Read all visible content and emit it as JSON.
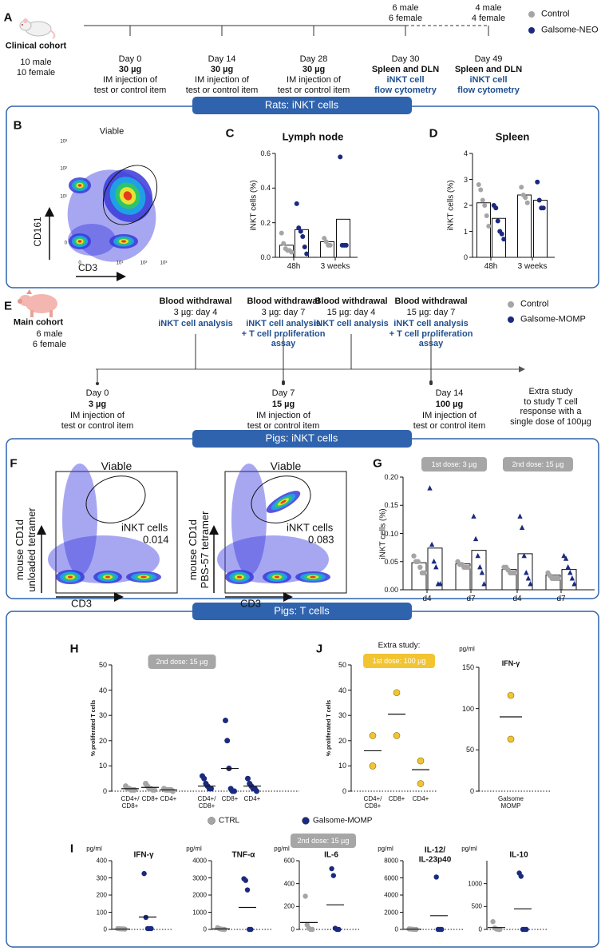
{
  "sections": [
    "Rats: iNKT cells",
    "Pigs: iNKT cells",
    "Pigs: T cells"
  ],
  "panel_a": {
    "letter": "A",
    "cohort": "Clinical cohort",
    "cohort_size": "10 male\n10 female",
    "events": [
      {
        "day": "Day 0",
        "dose": "30 µg",
        "action": "IM injection of\ntest or control item"
      },
      {
        "day": "Day 14",
        "dose": "30 µg",
        "action": "IM injection of\ntest or control item"
      },
      {
        "day": "Day 28",
        "dose": "30 µg",
        "action": "IM injection of\ntest or control item"
      },
      {
        "day": "Day 30",
        "group": "6 male\n6 female",
        "site": "Spleen and DLN",
        "assay": "iNKT cell\nflow cytometry"
      },
      {
        "day": "Day 49",
        "group": "4 male\n4 female",
        "site": "Spleen and DLN",
        "assay": "iNKT cell\nflow cytometry"
      }
    ],
    "legend": [
      {
        "name": "Control",
        "color": "#a5a5a5"
      },
      {
        "name": "Galsome-NEO",
        "color": "#1b2a80"
      }
    ]
  },
  "panel_b": {
    "letter": "B",
    "title": "Viable",
    "xlabel": "CD3",
    "ylabel": "CD161",
    "xticks": [
      "0",
      "10¹",
      "10²",
      "10³"
    ],
    "yticks": [
      "10³",
      "10²",
      "10¹",
      "0"
    ]
  },
  "panel_c": {
    "letter": "C",
    "title": "Lymph node",
    "ylabel": "iNKT cells (%)",
    "ylim": [
      0,
      0.6
    ],
    "yticks": [
      {
        "value": 0,
        "label": "0.0"
      },
      0.2,
      0.4,
      0.6
    ],
    "categories": [
      "48h",
      "3 weeks"
    ],
    "groups": [
      {
        "color": "#a5a5a5",
        "bar": 0.07,
        "points": [
          0.14,
          0.08,
          0.05,
          0.04,
          0.04,
          0.03
        ]
      },
      {
        "color": "#1b2a80",
        "bar": 0.16,
        "points": [
          0.31,
          0.17,
          0.15,
          0.12,
          0.06,
          0.02
        ]
      },
      {
        "color": "#a5a5a5",
        "bar": 0.09,
        "points": [
          0.11,
          0.09,
          0.07,
          0.07
        ]
      },
      {
        "color": "#1b2a80",
        "bar": 0.22,
        "points": [
          0.58,
          0.07,
          0.07,
          0.07
        ]
      }
    ]
  },
  "panel_d": {
    "letter": "D",
    "title": "Spleen",
    "ylabel": "iNKT cells (%)",
    "ylim": [
      0,
      4
    ],
    "yticks": [
      0,
      1,
      2,
      3,
      4
    ],
    "categories": [
      "48h",
      "3 weeks"
    ],
    "groups": [
      {
        "color": "#a5a5a5",
        "bar": 2.1,
        "points": [
          2.8,
          2.6,
          2.2,
          2.0,
          1.6,
          1.2
        ]
      },
      {
        "color": "#1b2a80",
        "bar": 1.5,
        "points": [
          2.0,
          1.9,
          1.4,
          1.0,
          0.9,
          0.7
        ]
      },
      {
        "color": "#a5a5a5",
        "bar": 2.4,
        "points": [
          2.7,
          2.4,
          2.3,
          2.1
        ]
      },
      {
        "color": "#1b2a80",
        "bar": 2.2,
        "points": [
          2.9,
          2.2,
          1.9,
          1.9
        ]
      }
    ]
  },
  "panel_e": {
    "letter": "E",
    "cohort": "Main cohort",
    "cohort_size": "6 male\n6 female",
    "sampling": [
      {
        "title": "Blood withdrawal",
        "when": "3 µg: day 4",
        "assay": "iNKT cell analysis"
      },
      {
        "title": "Blood withdrawal",
        "when": "3 µg: day 7",
        "assay": "iNKT cell analysis\n+ T cell proliferation\nassay"
      },
      {
        "title": "Blood withdrawal",
        "when": "15 µg: day 4",
        "assay": "iNKT cell analysis"
      },
      {
        "title": "Blood withdrawal",
        "when": "15 µg: day 7",
        "assay": "iNKT cell analysis\n+ T cell proliferation\nassay"
      }
    ],
    "doses": [
      {
        "day": "Day 0",
        "dose": "3 µg",
        "action": "IM injection of\ntest or control item"
      },
      {
        "day": "Day 7",
        "dose": "15 µg",
        "action": "IM injection of\ntest or control item"
      },
      {
        "day": "Day 14",
        "dose": "100 µg",
        "action": "IM injection of\ntest or control item"
      }
    ],
    "note": "Extra study\nto study T cell\nresponse with a\nsingle dose of 100µg",
    "legend": [
      {
        "name": "Control",
        "color": "#a5a5a5"
      },
      {
        "name": "Galsome-MOMP",
        "color": "#1b2a80"
      }
    ]
  },
  "panel_f": {
    "letter": "F",
    "plots": [
      {
        "title": "Viable",
        "ylabel": "mouse CD1d\nunloaded tetramer",
        "xlabel": "CD3",
        "gate": "iNKT cells",
        "value": 0.014
      },
      {
        "title": "Viable",
        "ylabel": "mouse CD1d\nPBS-57 tetramer",
        "xlabel": "CD3",
        "gate": "iNKT cells",
        "value": 0.083
      }
    ]
  },
  "panel_g": {
    "letter": "G",
    "ylabel": "iNKT cells (%)",
    "ylim": [
      0,
      0.2
    ],
    "yticks": [
      {
        "value": 0,
        "label": "0.00"
      },
      0.05,
      {
        "value": 0.1,
        "label": "0.10"
      },
      0.15,
      {
        "value": 0.2,
        "label": "0.20"
      }
    ],
    "notes": [
      "1st dose: 3 µg",
      "2nd dose: 15 µg"
    ],
    "categories": [
      "d4",
      "d7",
      "d4",
      "d7"
    ],
    "groups": [
      {
        "color": "#a5a5a5",
        "bar": 0.048,
        "points": [
          0.06,
          0.05,
          0.05,
          0.04,
          0.03,
          0.03
        ]
      },
      {
        "color": "#1b2a80",
        "marker": "triangle",
        "bar": 0.074,
        "points": [
          0.18,
          0.08,
          0.05,
          0.04,
          0.01,
          0.01
        ]
      },
      {
        "color": "#a5a5a5",
        "bar": 0.046,
        "points": [
          0.05,
          0.045,
          0.045,
          0.04,
          0.04,
          0.04
        ]
      },
      {
        "color": "#1b2a80",
        "marker": "triangle",
        "bar": 0.07,
        "points": [
          0.13,
          0.09,
          0.06,
          0.04,
          0.03,
          0.01
        ]
      },
      {
        "color": "#a5a5a5",
        "bar": 0.036,
        "points": [
          0.04,
          0.04,
          0.035,
          0.03,
          0.03,
          0.03
        ]
      },
      {
        "color": "#1b2a80",
        "marker": "triangle",
        "bar": 0.064,
        "points": [
          0.13,
          0.11,
          0.06,
          0.03,
          0.02,
          0.01
        ]
      },
      {
        "color": "#a5a5a5",
        "bar": 0.026,
        "points": [
          0.03,
          0.025,
          0.02,
          0.02,
          0.02,
          0.02
        ]
      },
      {
        "color": "#1b2a80",
        "marker": "triangle",
        "bar": 0.036,
        "points": [
          0.06,
          0.055,
          0.04,
          0.03,
          0.02,
          0.01
        ]
      }
    ]
  },
  "panel_h": {
    "letter": "H",
    "ylabel": "% proliferated T cells",
    "ylim": [
      0,
      50
    ],
    "yticks": [
      0,
      10,
      20,
      30,
      40,
      50
    ],
    "note": "2nd dose: 15 µg",
    "categories": [
      "CD4+/\nCD8+",
      "CD8+",
      "CD4+",
      "CD4+/\nCD8+",
      "CD8+",
      "CD4+"
    ],
    "groups": [
      {
        "color": "#a5a5a5",
        "median": 1,
        "points": [
          2,
          1,
          1,
          0.5,
          0.5,
          0.5
        ]
      },
      {
        "color": "#a5a5a5",
        "median": 1.5,
        "points": [
          3,
          2,
          1,
          1,
          0.5,
          0.5
        ]
      },
      {
        "color": "#a5a5a5",
        "median": 0.5,
        "points": [
          1,
          0.5,
          0.5,
          0.5,
          0.5,
          0
        ]
      },
      {
        "color": "#1b2a80",
        "median": 2,
        "points": [
          6,
          5,
          3,
          2,
          1,
          1
        ]
      },
      {
        "color": "#1b2a80",
        "median": 9,
        "points": [
          28,
          20,
          9,
          1,
          0,
          0
        ]
      },
      {
        "color": "#1b2a80",
        "median": 2,
        "points": [
          5,
          3,
          2,
          1,
          1,
          0
        ]
      }
    ],
    "legend": [
      {
        "name": "CTRL",
        "color": "#a5a5a5"
      },
      {
        "name": "Galsome-MOMP",
        "color": "#1b2a80"
      }
    ]
  },
  "panel_j": {
    "letter": "J",
    "heading": "Extra study:",
    "note": "1st dose: 100 µg",
    "charts": [
      {
        "ylabel": "% proliferated T cells",
        "ylim": [
          0,
          50
        ],
        "yticks": [
          0,
          10,
          20,
          30,
          40,
          50
        ],
        "categories": [
          "CD4+/\nCD8+",
          "CD8+",
          "CD4+"
        ],
        "groups": [
          {
            "color": "#f3c431",
            "median": 16,
            "points": [
              22,
              10
            ]
          },
          {
            "color": "#f3c431",
            "median": 30.5,
            "points": [
              39,
              22
            ]
          },
          {
            "color": "#f3c431",
            "median": 8.5,
            "points": [
              12,
              3
            ]
          }
        ]
      },
      {
        "unit": "pg/ml",
        "title": "IFN-γ",
        "ylim": [
          0,
          150
        ],
        "yticks": [
          0,
          50,
          100,
          150
        ],
        "categories": [
          "Galsome\nMOMP"
        ],
        "groups": [
          {
            "color": "#f3c431",
            "median": 90,
            "points": [
              116,
              63
            ]
          }
        ]
      }
    ]
  },
  "panel_i": {
    "letter": "I",
    "note": "2nd dose: 15 µg",
    "charts": [
      {
        "unit": "pg/ml",
        "title": "IFN-γ",
        "ylim": [
          0,
          400
        ],
        "yticks": [
          0,
          100,
          200,
          300,
          400
        ],
        "groups": [
          {
            "color": "#a5a5a5",
            "median": 2,
            "points": [
              5,
              4,
              3,
              3,
              2
            ]
          },
          {
            "color": "#1b2a80",
            "median": 72,
            "points": [
              325,
              70,
              5,
              5,
              5
            ]
          }
        ]
      },
      {
        "unit": "pg/ml",
        "title": "TNF-α",
        "ylim": [
          0,
          4000
        ],
        "yticks": [
          0,
          1000,
          2000,
          3000,
          4000
        ],
        "groups": [
          {
            "color": "#a5a5a5",
            "median": 30,
            "points": [
              100,
              50,
              20,
              10,
              0
            ]
          },
          {
            "color": "#1b2a80",
            "median": 1280,
            "points": [
              2950,
              2850,
              2300,
              0,
              0
            ]
          }
        ]
      },
      {
        "unit": "pg/ml",
        "title": "IL-6",
        "ylim": [
          0,
          600
        ],
        "yticks": [
          0,
          200,
          400,
          600
        ],
        "groups": [
          {
            "color": "#a5a5a5",
            "median": 60,
            "points": [
              290,
              40,
              10,
              0,
              0
            ]
          },
          {
            "color": "#1b2a80",
            "median": 215,
            "points": [
              530,
              470,
              10,
              0,
              0
            ]
          }
        ]
      },
      {
        "unit": "pg/ml",
        "title": "IL-12/\nIL-23p40",
        "ylim": [
          0,
          8000
        ],
        "yticks": [
          0,
          2000,
          4000,
          6000,
          8000
        ],
        "groups": [
          {
            "color": "#a5a5a5",
            "median": 30,
            "points": [
              60,
              40,
              20,
              10,
              0
            ]
          },
          {
            "color": "#1b2a80",
            "median": 1600,
            "points": [
              6100,
              0,
              0,
              0
            ]
          }
        ]
      },
      {
        "unit": "pg/ml",
        "title": "IL-10",
        "ylim": [
          0,
          1500
        ],
        "yticks": [
          0,
          500,
          1000
        ],
        "groups": [
          {
            "color": "#a5a5a5",
            "median": 40,
            "points": [
              170,
              30,
              10,
              0,
              0
            ]
          },
          {
            "color": "#1b2a80",
            "median": 450,
            "points": [
              1230,
              1160,
              0,
              0,
              0
            ]
          }
        ]
      }
    ]
  }
}
